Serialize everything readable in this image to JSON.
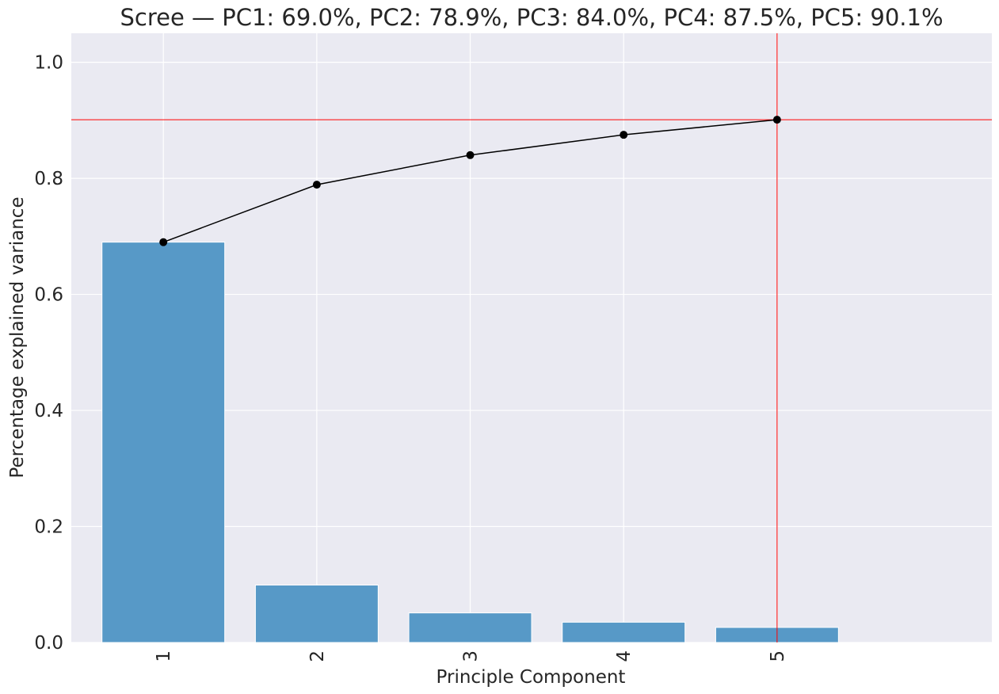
{
  "chart_data": {
    "type": "bar",
    "title": "Scree — PC1: 69.0%, PC2: 78.9%, PC3: 84.0%, PC4: 87.5%, PC5: 90.1%",
    "xlabel": "Principle Component",
    "ylabel": "Percentage explained variance",
    "categories": [
      "1",
      "2",
      "3",
      "4",
      "5"
    ],
    "series": [
      {
        "name": "explained variance",
        "kind": "bar",
        "values": [
          0.69,
          0.099,
          0.051,
          0.035,
          0.026
        ],
        "color": "#5799c7"
      },
      {
        "name": "cumulative explained variance",
        "kind": "line",
        "values": [
          0.69,
          0.789,
          0.84,
          0.875,
          0.901
        ],
        "color": "#000000"
      }
    ],
    "ylim": [
      0,
      1.05
    ],
    "xlim": [
      0.4,
      6.4
    ],
    "yticks": [
      0.0,
      0.2,
      0.4,
      0.6,
      0.8,
      1.0
    ],
    "ytick_labels": [
      "0.0",
      "0.2",
      "0.4",
      "0.6",
      "0.8",
      "1.0"
    ],
    "reference_lines": {
      "horizontal_y": 0.901,
      "vertical_x": 5,
      "color": "#ff0000"
    },
    "grid": true,
    "background_color": "#eaeaf2",
    "grid_color": "#ffffff"
  }
}
